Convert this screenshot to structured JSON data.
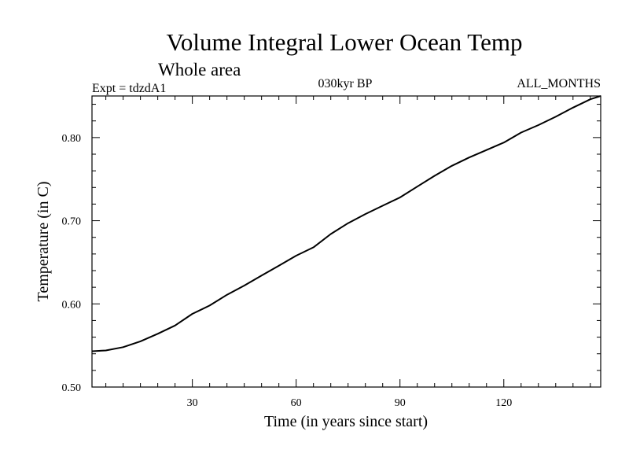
{
  "chart_data": {
    "type": "line",
    "title": "Volume Integral Lower Ocean Temp",
    "subtitle": "Whole area",
    "experiment": "Expt = tdzdA1",
    "period": "030kyr BP",
    "months": "ALL_MONTHS",
    "xlabel": "Time (in years since start)",
    "ylabel": "Temperature (in C)",
    "xlim": [
      1,
      148
    ],
    "ylim": [
      0.5,
      0.85
    ],
    "xticks": [
      30,
      60,
      90,
      120
    ],
    "xtick_labels": [
      "30",
      "60",
      "90",
      "120"
    ],
    "yticks": [
      0.5,
      0.6,
      0.7,
      0.8
    ],
    "ytick_labels": [
      "0.50",
      "0.60",
      "0.70",
      "0.80"
    ],
    "grid": false,
    "series": [
      {
        "name": "Volume Integral Lower Ocean Temp",
        "color": "#000000",
        "x": [
          1,
          5,
          10,
          15,
          20,
          25,
          30,
          35,
          40,
          45,
          50,
          55,
          60,
          65,
          70,
          75,
          80,
          85,
          90,
          95,
          100,
          105,
          110,
          115,
          120,
          125,
          130,
          135,
          140,
          145,
          148
        ],
        "y": [
          0.543,
          0.544,
          0.548,
          0.555,
          0.564,
          0.574,
          0.588,
          0.598,
          0.611,
          0.622,
          0.634,
          0.646,
          0.658,
          0.668,
          0.684,
          0.697,
          0.708,
          0.718,
          0.728,
          0.741,
          0.754,
          0.766,
          0.776,
          0.785,
          0.794,
          0.806,
          0.815,
          0.825,
          0.836,
          0.846,
          0.85
        ]
      }
    ]
  }
}
